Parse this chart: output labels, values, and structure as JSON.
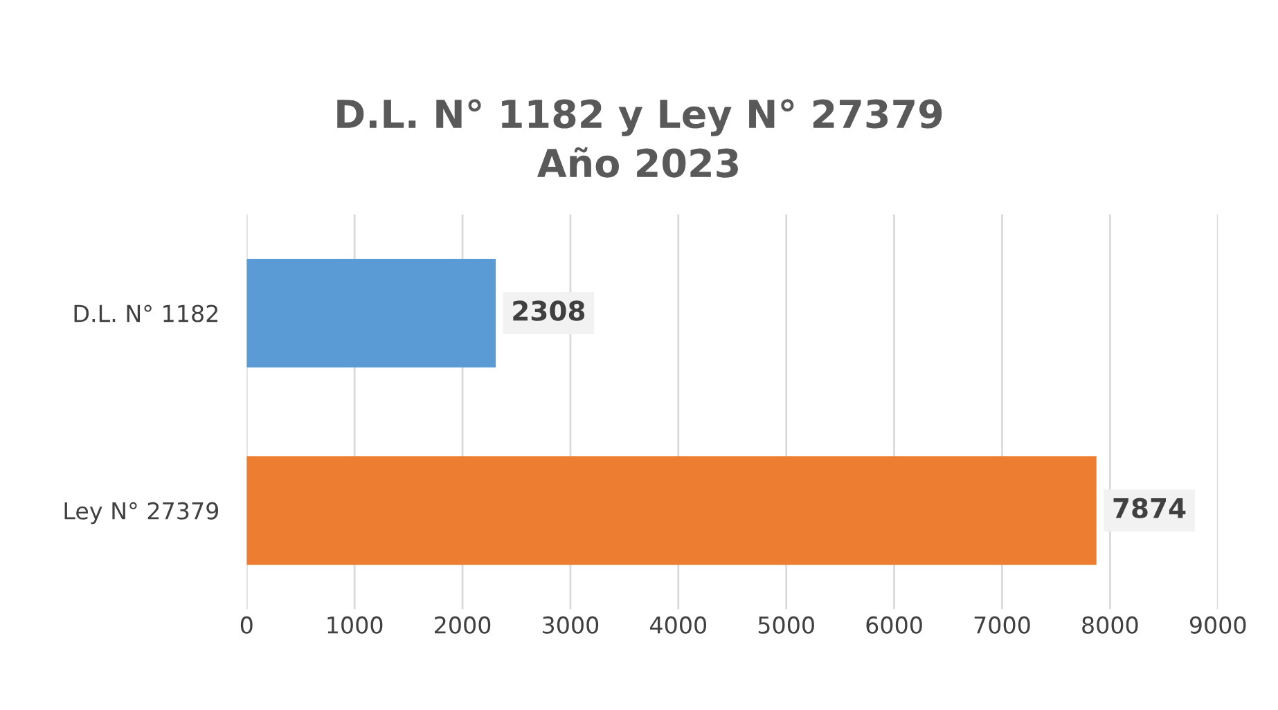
{
  "chart_data": {
    "type": "bar",
    "orientation": "horizontal",
    "title": "D.L. N° 1182 y Ley N° 27379\nAño 2023",
    "categories": [
      "D.L. N° 1182",
      "Ley N° 27379"
    ],
    "values": [
      2308,
      7874
    ],
    "colors": [
      "#5b9bd5",
      "#ed7d31"
    ],
    "xlim": [
      0,
      9000
    ],
    "xticks": [
      0,
      1000,
      2000,
      3000,
      4000,
      5000,
      6000,
      7000,
      8000,
      9000
    ],
    "grid": "x",
    "data_labels": true,
    "legend": false
  }
}
